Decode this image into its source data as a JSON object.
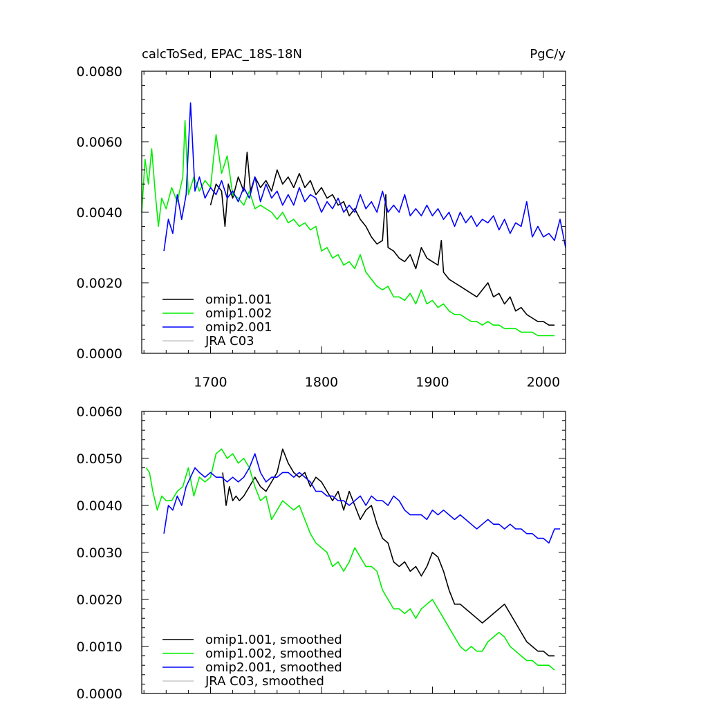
{
  "chart_data": [
    {
      "type": "line",
      "title": "calcToSed, EPAC_18S-18N",
      "units": "PgC/y",
      "xlabel": "",
      "ylabel": "",
      "xlim": [
        1638,
        2020
      ],
      "ylim": [
        0.0,
        0.008
      ],
      "xticks": [
        1700,
        1800,
        1900,
        2000
      ],
      "xtick_labels": [
        "1700",
        "1800",
        "1900",
        "2000"
      ],
      "yticks": [
        0.0,
        0.002,
        0.004,
        0.006,
        0.008
      ],
      "ytick_labels": [
        "0.0000",
        "0.0020",
        "0.0040",
        "0.0060",
        "0.0080"
      ],
      "legend_position": "bottom-left",
      "series": [
        {
          "name": "omip1.001",
          "color": "#000000",
          "x": [
            1700,
            1705,
            1710,
            1713,
            1716,
            1720,
            1725,
            1730,
            1733,
            1736,
            1740,
            1745,
            1750,
            1755,
            1760,
            1765,
            1770,
            1775,
            1780,
            1785,
            1790,
            1795,
            1800,
            1805,
            1810,
            1815,
            1820,
            1825,
            1830,
            1835,
            1840,
            1845,
            1850,
            1855,
            1858,
            1860,
            1865,
            1870,
            1875,
            1880,
            1885,
            1890,
            1895,
            1900,
            1905,
            1908,
            1910,
            1915,
            1920,
            1925,
            1930,
            1935,
            1940,
            1945,
            1950,
            1955,
            1960,
            1965,
            1970,
            1975,
            1980,
            1985,
            1990,
            1995,
            2000,
            2005,
            2010
          ],
          "values": [
            0.0042,
            0.0048,
            0.0046,
            0.0036,
            0.0048,
            0.0044,
            0.005,
            0.0046,
            0.0057,
            0.0046,
            0.005,
            0.0047,
            0.0049,
            0.0046,
            0.0052,
            0.0048,
            0.005,
            0.0047,
            0.0051,
            0.0047,
            0.0049,
            0.0045,
            0.0047,
            0.0044,
            0.0045,
            0.0042,
            0.0043,
            0.0039,
            0.0041,
            0.0038,
            0.0036,
            0.0033,
            0.0031,
            0.0032,
            0.0045,
            0.003,
            0.0029,
            0.0027,
            0.0026,
            0.0028,
            0.0024,
            0.003,
            0.0027,
            0.0026,
            0.0025,
            0.0032,
            0.0023,
            0.0021,
            0.002,
            0.0019,
            0.0018,
            0.0017,
            0.0016,
            0.0018,
            0.002,
            0.0016,
            0.0017,
            0.0014,
            0.0016,
            0.0012,
            0.0013,
            0.0011,
            0.001,
            0.0009,
            0.0009,
            0.0008,
            0.0008
          ]
        },
        {
          "name": "omip1.002",
          "color": "#00ee00",
          "x": [
            1638,
            1641,
            1644,
            1647,
            1650,
            1653,
            1656,
            1660,
            1665,
            1670,
            1675,
            1677,
            1680,
            1685,
            1690,
            1695,
            1700,
            1705,
            1710,
            1715,
            1720,
            1725,
            1730,
            1735,
            1740,
            1745,
            1750,
            1755,
            1760,
            1765,
            1770,
            1775,
            1780,
            1785,
            1790,
            1795,
            1800,
            1805,
            1810,
            1815,
            1820,
            1825,
            1830,
            1835,
            1840,
            1845,
            1850,
            1855,
            1860,
            1865,
            1870,
            1875,
            1880,
            1885,
            1890,
            1895,
            1900,
            1905,
            1910,
            1915,
            1920,
            1925,
            1930,
            1935,
            1940,
            1945,
            1950,
            1955,
            1960,
            1965,
            1970,
            1975,
            1980,
            1985,
            1990,
            1995,
            2000,
            2005,
            2010
          ],
          "values": [
            0.004,
            0.0055,
            0.0048,
            0.0058,
            0.0046,
            0.0036,
            0.0044,
            0.0041,
            0.0047,
            0.0043,
            0.005,
            0.0066,
            0.0045,
            0.005,
            0.0046,
            0.0049,
            0.0047,
            0.0062,
            0.0051,
            0.0056,
            0.0045,
            0.0044,
            0.0042,
            0.0046,
            0.0041,
            0.0042,
            0.0041,
            0.004,
            0.0038,
            0.004,
            0.0037,
            0.0038,
            0.0036,
            0.0037,
            0.0035,
            0.0036,
            0.0029,
            0.003,
            0.0027,
            0.0028,
            0.0025,
            0.0026,
            0.0024,
            0.0028,
            0.0023,
            0.0021,
            0.0019,
            0.0018,
            0.0019,
            0.0016,
            0.0016,
            0.0015,
            0.0017,
            0.0014,
            0.0018,
            0.0014,
            0.0015,
            0.0013,
            0.0014,
            0.0012,
            0.0011,
            0.0011,
            0.001,
            0.0009,
            0.0009,
            0.0008,
            0.0009,
            0.0008,
            0.0008,
            0.0007,
            0.0007,
            0.0007,
            0.0006,
            0.0006,
            0.0006,
            0.0005,
            0.0005,
            0.0005,
            0.0005
          ]
        },
        {
          "name": "omip2.001",
          "color": "#0000ff",
          "x": [
            1658,
            1662,
            1666,
            1670,
            1674,
            1678,
            1682,
            1686,
            1690,
            1695,
            1700,
            1705,
            1710,
            1715,
            1720,
            1725,
            1730,
            1735,
            1740,
            1745,
            1750,
            1755,
            1760,
            1765,
            1770,
            1775,
            1780,
            1785,
            1790,
            1795,
            1800,
            1805,
            1810,
            1815,
            1820,
            1825,
            1830,
            1835,
            1840,
            1845,
            1850,
            1855,
            1860,
            1865,
            1870,
            1875,
            1880,
            1885,
            1890,
            1895,
            1900,
            1905,
            1910,
            1915,
            1920,
            1925,
            1930,
            1935,
            1940,
            1945,
            1950,
            1955,
            1960,
            1965,
            1970,
            1975,
            1980,
            1985,
            1990,
            1995,
            2000,
            2005,
            2010,
            2015,
            2020
          ],
          "values": [
            0.0029,
            0.0038,
            0.0034,
            0.0045,
            0.0038,
            0.0045,
            0.0071,
            0.0046,
            0.005,
            0.0044,
            0.0047,
            0.0045,
            0.0049,
            0.0044,
            0.0046,
            0.0043,
            0.0047,
            0.0044,
            0.005,
            0.0043,
            0.0048,
            0.0044,
            0.0046,
            0.0042,
            0.0045,
            0.0042,
            0.0047,
            0.0043,
            0.0045,
            0.0044,
            0.004,
            0.0043,
            0.0041,
            0.0044,
            0.004,
            0.0042,
            0.004,
            0.0045,
            0.0041,
            0.0043,
            0.004,
            0.0046,
            0.004,
            0.0042,
            0.004,
            0.0045,
            0.0039,
            0.0041,
            0.0039,
            0.0042,
            0.0039,
            0.0041,
            0.0038,
            0.004,
            0.0036,
            0.004,
            0.0037,
            0.0039,
            0.0036,
            0.0038,
            0.0037,
            0.0039,
            0.0035,
            0.0038,
            0.0034,
            0.0037,
            0.0036,
            0.0043,
            0.0033,
            0.0036,
            0.0033,
            0.0034,
            0.0032,
            0.0038,
            0.003
          ]
        },
        {
          "name": "JRA C03",
          "color": "#c8c8c8",
          "x": [],
          "values": []
        }
      ]
    },
    {
      "type": "line",
      "title": "",
      "xlabel": "",
      "ylabel": "",
      "xlim": [
        1638,
        2020
      ],
      "ylim": [
        0.0,
        0.006
      ],
      "xticks": [
        1700,
        1800,
        1900,
        2000
      ],
      "xtick_labels": [],
      "yticks": [
        0.0,
        0.001,
        0.002,
        0.003,
        0.004,
        0.005,
        0.006
      ],
      "ytick_labels": [
        "0.0000",
        "0.0010",
        "0.0020",
        "0.0030",
        "0.0040",
        "0.0050",
        "0.0060"
      ],
      "legend_position": "bottom-left",
      "series": [
        {
          "name": "omip1.001, smoothed",
          "color": "#000000",
          "x": [
            1711,
            1714,
            1717,
            1720,
            1723,
            1726,
            1730,
            1735,
            1740,
            1745,
            1750,
            1755,
            1760,
            1765,
            1770,
            1775,
            1780,
            1785,
            1790,
            1795,
            1800,
            1805,
            1810,
            1815,
            1820,
            1825,
            1830,
            1835,
            1840,
            1845,
            1850,
            1855,
            1860,
            1865,
            1870,
            1875,
            1880,
            1885,
            1890,
            1895,
            1900,
            1905,
            1910,
            1915,
            1920,
            1925,
            1930,
            1935,
            1940,
            1945,
            1950,
            1955,
            1960,
            1965,
            1970,
            1975,
            1980,
            1985,
            1990,
            1995,
            2000,
            2005,
            2010
          ],
          "values": [
            0.0047,
            0.004,
            0.0044,
            0.0041,
            0.0042,
            0.0041,
            0.0042,
            0.0044,
            0.0046,
            0.0044,
            0.0043,
            0.0045,
            0.0047,
            0.0052,
            0.0049,
            0.0047,
            0.0046,
            0.0047,
            0.0044,
            0.0046,
            0.0045,
            0.0043,
            0.0041,
            0.0043,
            0.0039,
            0.0043,
            0.004,
            0.0037,
            0.0039,
            0.004,
            0.0036,
            0.0033,
            0.0032,
            0.0028,
            0.0027,
            0.0028,
            0.0026,
            0.0027,
            0.0025,
            0.0027,
            0.003,
            0.0029,
            0.0026,
            0.0022,
            0.0019,
            0.0019,
            0.0018,
            0.0017,
            0.0016,
            0.0015,
            0.0016,
            0.0017,
            0.0018,
            0.0019,
            0.0017,
            0.0015,
            0.0013,
            0.0011,
            0.001,
            0.0009,
            0.0009,
            0.0008,
            0.0008
          ]
        },
        {
          "name": "omip1.002, smoothed",
          "color": "#00ee00",
          "x": [
            1642,
            1645,
            1648,
            1652,
            1656,
            1660,
            1665,
            1670,
            1675,
            1680,
            1685,
            1690,
            1695,
            1700,
            1705,
            1710,
            1715,
            1720,
            1725,
            1730,
            1735,
            1740,
            1745,
            1750,
            1755,
            1760,
            1765,
            1770,
            1775,
            1780,
            1785,
            1790,
            1795,
            1800,
            1805,
            1810,
            1815,
            1820,
            1825,
            1830,
            1835,
            1840,
            1845,
            1850,
            1855,
            1860,
            1865,
            1870,
            1875,
            1880,
            1885,
            1890,
            1895,
            1900,
            1905,
            1910,
            1915,
            1920,
            1925,
            1930,
            1935,
            1940,
            1945,
            1950,
            1955,
            1960,
            1965,
            1970,
            1975,
            1980,
            1985,
            1990,
            1995,
            2000,
            2005,
            2010
          ],
          "values": [
            0.0048,
            0.0047,
            0.0043,
            0.0039,
            0.0042,
            0.0041,
            0.0041,
            0.0043,
            0.0044,
            0.0048,
            0.0042,
            0.0046,
            0.0045,
            0.0046,
            0.0051,
            0.0052,
            0.005,
            0.0051,
            0.0049,
            0.005,
            0.0048,
            0.0044,
            0.0041,
            0.0042,
            0.0037,
            0.0039,
            0.0041,
            0.004,
            0.0039,
            0.004,
            0.0037,
            0.0034,
            0.0032,
            0.0031,
            0.003,
            0.0027,
            0.0028,
            0.0026,
            0.0028,
            0.0031,
            0.0029,
            0.0027,
            0.0027,
            0.0026,
            0.0022,
            0.002,
            0.0018,
            0.0018,
            0.0017,
            0.0018,
            0.0016,
            0.0018,
            0.0019,
            0.002,
            0.0018,
            0.0016,
            0.0014,
            0.0012,
            0.001,
            0.0009,
            0.001,
            0.0009,
            0.0009,
            0.0011,
            0.0012,
            0.0013,
            0.0012,
            0.001,
            0.0009,
            0.0008,
            0.0007,
            0.0007,
            0.0006,
            0.0006,
            0.0006,
            0.0005
          ]
        },
        {
          "name": "omip2.001, smoothed",
          "color": "#0000ff",
          "x": [
            1658,
            1662,
            1666,
            1670,
            1674,
            1678,
            1682,
            1686,
            1690,
            1695,
            1700,
            1705,
            1710,
            1715,
            1720,
            1725,
            1730,
            1735,
            1740,
            1745,
            1750,
            1755,
            1760,
            1765,
            1770,
            1775,
            1780,
            1785,
            1790,
            1795,
            1800,
            1805,
            1810,
            1815,
            1820,
            1825,
            1830,
            1835,
            1840,
            1845,
            1850,
            1855,
            1860,
            1865,
            1870,
            1875,
            1880,
            1885,
            1890,
            1895,
            1900,
            1905,
            1910,
            1915,
            1920,
            1925,
            1930,
            1935,
            1940,
            1945,
            1950,
            1955,
            1960,
            1965,
            1970,
            1975,
            1980,
            1985,
            1990,
            1995,
            2000,
            2005,
            2010,
            2015
          ],
          "values": [
            0.0034,
            0.004,
            0.0039,
            0.0042,
            0.004,
            0.0044,
            0.0046,
            0.0048,
            0.0047,
            0.0046,
            0.0047,
            0.0046,
            0.0046,
            0.0045,
            0.0046,
            0.0045,
            0.0046,
            0.0048,
            0.0051,
            0.0047,
            0.0045,
            0.0046,
            0.0046,
            0.0047,
            0.0047,
            0.0046,
            0.0047,
            0.0046,
            0.0045,
            0.0043,
            0.0043,
            0.0042,
            0.0042,
            0.0041,
            0.0041,
            0.004,
            0.0041,
            0.0042,
            0.004,
            0.0042,
            0.0041,
            0.0041,
            0.004,
            0.0042,
            0.0041,
            0.0039,
            0.0038,
            0.0038,
            0.0038,
            0.0037,
            0.0039,
            0.0038,
            0.0039,
            0.0038,
            0.0037,
            0.0038,
            0.0037,
            0.0036,
            0.0035,
            0.0036,
            0.0037,
            0.0036,
            0.0036,
            0.0035,
            0.0036,
            0.0035,
            0.0035,
            0.0034,
            0.0034,
            0.0033,
            0.0033,
            0.0032,
            0.0035,
            0.0035
          ]
        },
        {
          "name": "JRA C03, smoothed",
          "color": "#c8c8c8",
          "x": [],
          "values": []
        }
      ]
    }
  ]
}
